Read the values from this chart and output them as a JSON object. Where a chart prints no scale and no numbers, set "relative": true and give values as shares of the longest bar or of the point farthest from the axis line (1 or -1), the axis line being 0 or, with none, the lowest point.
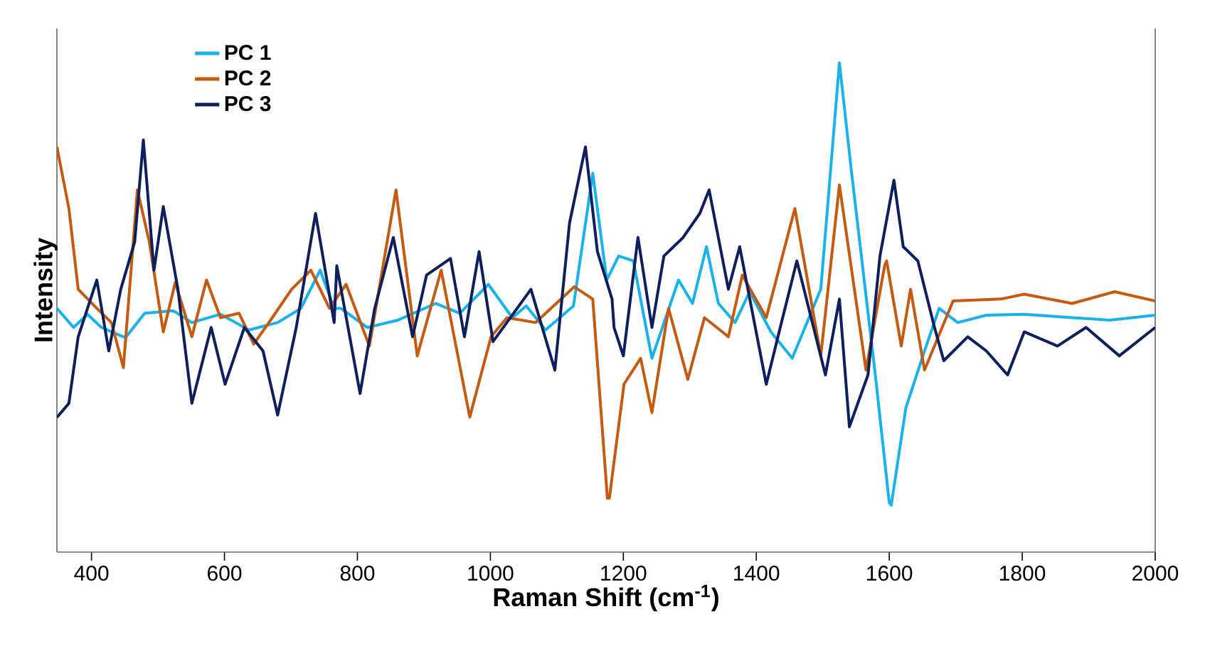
{
  "chart_data": {
    "type": "line",
    "relative": true,
    "xlabel": "Raman Shift (cm$^{-1}$)",
    "ylabel": "Intensity",
    "xlim": [
      348,
      2000
    ],
    "xticks": [
      400,
      600,
      800,
      1000,
      1200,
      1400,
      1600,
      1800,
      2000
    ],
    "grid": false,
    "legend": "top left",
    "line_style": "solid",
    "marker": "none",
    "series": [
      {
        "name": "PC 1",
        "color": "#1ab2ea",
        "x": [
          348,
          373,
          394,
          415,
          451,
          480,
          523,
          551,
          594,
          637,
          680,
          715,
          744,
          765,
          775,
          815,
          861,
          918,
          954,
          997,
          1033,
          1054,
          1083,
          1125,
          1154,
          1175,
          1193,
          1215,
          1243,
          1283,
          1304,
          1325,
          1343,
          1368,
          1390,
          1422,
          1454,
          1497,
          1525,
          1543,
          1579,
          1600,
          1603,
          1625,
          1653,
          1675,
          1703,
          1746,
          1803,
          1875,
          1932,
          2000
        ],
        "values": [
          0.498,
          0.459,
          0.486,
          0.459,
          0.438,
          0.488,
          0.493,
          0.469,
          0.486,
          0.454,
          0.469,
          0.498,
          0.576,
          0.498,
          0.498,
          0.459,
          0.474,
          0.508,
          0.488,
          0.547,
          0.479,
          0.503,
          0.454,
          0.503,
          0.774,
          0.556,
          0.605,
          0.595,
          0.396,
          0.556,
          0.508,
          0.624,
          0.508,
          0.469,
          0.532,
          0.45,
          0.396,
          0.537,
          1.0,
          0.779,
          0.362,
          0.101,
          0.096,
          0.295,
          0.411,
          0.498,
          0.469,
          0.484,
          0.486,
          0.479,
          0.474,
          0.484
        ]
      },
      {
        "name": "PC 2",
        "color": "#c55a11",
        "x": [
          348,
          366,
          380,
          408,
          430,
          448,
          469,
          487,
          508,
          526,
          551,
          573,
          594,
          622,
          644,
          672,
          701,
          730,
          758,
          783,
          818,
          858,
          890,
          926,
          969,
          1001,
          1025,
          1068,
          1126,
          1154,
          1176,
          1179,
          1201,
          1226,
          1243,
          1268,
          1297,
          1322,
          1358,
          1379,
          1415,
          1458,
          1497,
          1525,
          1565,
          1593,
          1596,
          1618,
          1632,
          1653,
          1696,
          1768,
          1803,
          1875,
          1939,
          2000
        ],
        "values": [
          0.828,
          0.702,
          0.537,
          0.498,
          0.469,
          0.377,
          0.74,
          0.634,
          0.45,
          0.551,
          0.44,
          0.556,
          0.479,
          0.488,
          0.425,
          0.479,
          0.537,
          0.576,
          0.498,
          0.547,
          0.421,
          0.74,
          0.401,
          0.576,
          0.276,
          0.44,
          0.479,
          0.469,
          0.542,
          0.517,
          0.11,
          0.11,
          0.343,
          0.396,
          0.285,
          0.498,
          0.353,
          0.479,
          0.44,
          0.566,
          0.479,
          0.702,
          0.401,
          0.75,
          0.372,
          0.585,
          0.595,
          0.421,
          0.537,
          0.372,
          0.513,
          0.517,
          0.527,
          0.508,
          0.532,
          0.513
        ]
      },
      {
        "name": "PC 3",
        "color": "#0d1f5c",
        "x": [
          348,
          366,
          380,
          408,
          426,
          444,
          465,
          478,
          494,
          508,
          530,
          551,
          580,
          601,
          630,
          658,
          680,
          708,
          737,
          765,
          769,
          804,
          826,
          854,
          883,
          904,
          940,
          961,
          983,
          1004,
          1061,
          1097,
          1119,
          1143,
          1161,
          1183,
          1186,
          1200,
          1222,
          1243,
          1261,
          1290,
          1315,
          1329,
          1358,
          1375,
          1415,
          1436,
          1461,
          1504,
          1525,
          1540,
          1568,
          1586,
          1607,
          1621,
          1643,
          1668,
          1682,
          1718,
          1746,
          1778,
          1803,
          1853,
          1896,
          1946,
          2000
        ],
        "values": [
          0.275,
          0.304,
          0.44,
          0.556,
          0.411,
          0.537,
          0.634,
          0.842,
          0.576,
          0.706,
          0.537,
          0.304,
          0.459,
          0.343,
          0.459,
          0.411,
          0.28,
          0.459,
          0.692,
          0.469,
          0.585,
          0.324,
          0.498,
          0.643,
          0.44,
          0.566,
          0.6,
          0.44,
          0.614,
          0.43,
          0.537,
          0.372,
          0.672,
          0.828,
          0.614,
          0.517,
          0.459,
          0.401,
          0.643,
          0.459,
          0.605,
          0.643,
          0.692,
          0.74,
          0.537,
          0.624,
          0.343,
          0.459,
          0.595,
          0.362,
          0.517,
          0.256,
          0.362,
          0.605,
          0.76,
          0.624,
          0.595,
          0.459,
          0.391,
          0.44,
          0.411,
          0.362,
          0.45,
          0.421,
          0.459,
          0.401,
          0.459
        ]
      }
    ]
  }
}
